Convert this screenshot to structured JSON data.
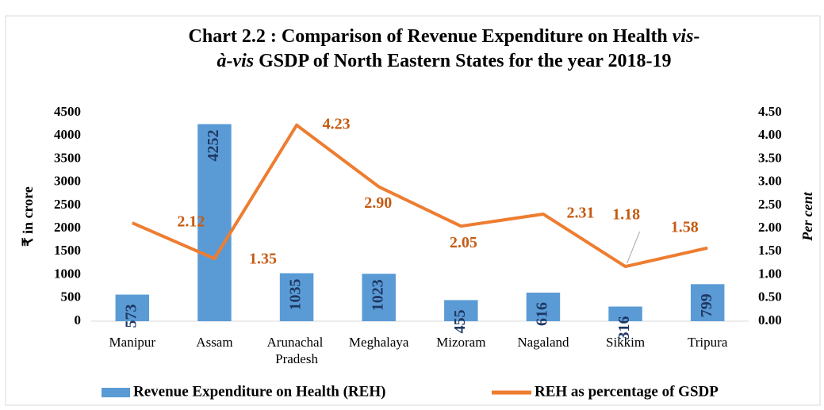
{
  "chart_data": {
    "type": "bar_line",
    "title": [
      "Chart 2.2 : Comparison of Revenue Expenditure on Health ",
      "vis-",
      "à-vis",
      " GSDP of North Eastern States for the year 2018-19"
    ],
    "y_label": "₹ in crore",
    "y2_label": "Per cent",
    "categories": [
      "Manipur",
      "Assam",
      "Arunachal Pradesh",
      "Meghalaya",
      "Mizoram",
      "Nagaland",
      "Sikkim",
      "Tripura"
    ],
    "series": [
      {
        "name": "Revenue Expenditure on Health (REH)",
        "type": "bar",
        "color": "#5b9bd5",
        "values": [
          573,
          4252,
          1035,
          1023,
          455,
          616,
          316,
          799
        ]
      },
      {
        "name": "REH as percentage of GSDP",
        "type": "line",
        "axis": "y2",
        "color": "#ed7d31",
        "values": [
          2.12,
          1.35,
          4.23,
          2.9,
          2.05,
          2.31,
          1.18,
          1.58
        ],
        "value_labels": [
          "2.12",
          "1.35",
          "4.23",
          "2.90",
          "2.05",
          "2.31",
          "1.18",
          "1.58"
        ]
      }
    ],
    "ylim": [
      0,
      4500
    ],
    "yticks": [
      0,
      500,
      1000,
      1500,
      2000,
      2500,
      3000,
      3500,
      4000,
      4500
    ],
    "y2lim": [
      0,
      4.5
    ],
    "y2ticks": [
      {
        "value": 0,
        "label": "0.00"
      },
      {
        "value": 0.5,
        "label": "0.50"
      },
      {
        "value": 1,
        "label": "1.00"
      },
      {
        "value": 1.5,
        "label": "1.50"
      },
      {
        "value": 2,
        "label": "2.00"
      },
      {
        "value": 2.5,
        "label": "2.50"
      },
      {
        "value": 3,
        "label": "3.00"
      },
      {
        "value": 3.5,
        "label": "3.50"
      },
      {
        "value": 4,
        "label": "4.00"
      },
      {
        "value": 4.5,
        "label": "4.50"
      }
    ],
    "legend": "bottom"
  }
}
